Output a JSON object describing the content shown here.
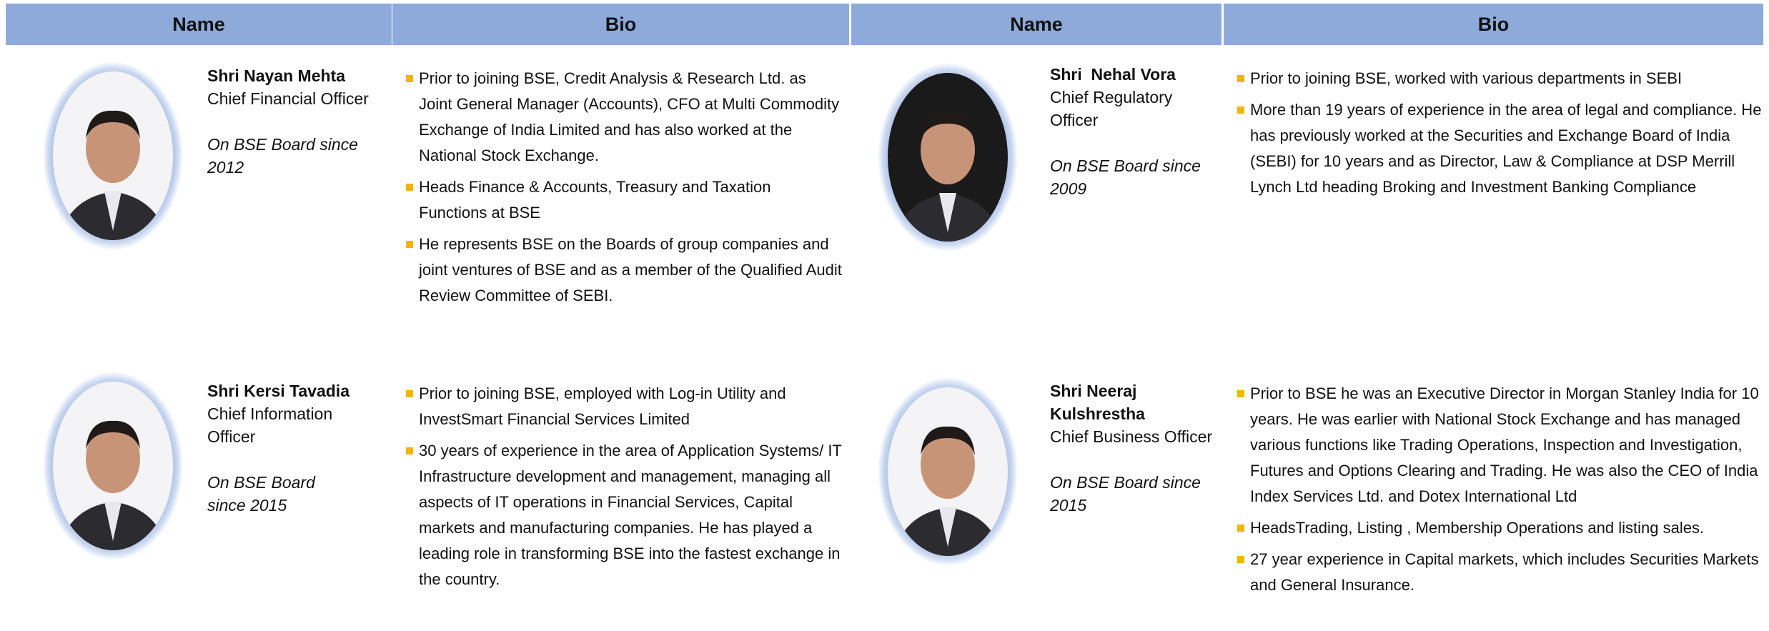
{
  "header": [
    "Name",
    "Bio",
    "Name",
    "Bio"
  ],
  "people": [
    {
      "name": "Shri Nayan Mehta",
      "title": "Chief Financial Officer",
      "board": "On BSE Board since 2012",
      "bio": [
        "Prior to joining BSE, Credit Analysis & Research Ltd. as Joint General Manager (Accounts), CFO at Multi Commodity Exchange of India Limited and has also worked at the National Stock Exchange.",
        "Heads Finance & Accounts, Treasury and Taxation Functions at BSE",
        "He represents BSE on the Boards of group companies and joint ventures of BSE and as a member of the Qualified Audit Review Committee of SEBI."
      ]
    },
    {
      "name": "Shri Kersi Tavadia",
      "title": "Chief Information Officer",
      "board": "On BSE Board since 2015",
      "bio": [
        "Prior to joining BSE, employed with Log-in Utility and InvestSmart Financial Services Limited",
        "30 years of experience in the area of Application Systems/ IT Infrastructure development and management, managing all aspects of IT operations in Financial Services, Capital markets and manufacturing companies. He has played a leading role in transforming BSE into the fastest exchange in the country."
      ]
    },
    {
      "name": "Shri  Nehal Vora",
      "title": "Chief Regulatory Officer",
      "board": "On BSE Board since 2009",
      "bio": [
        "Prior to joining BSE, worked with various departments in SEBI",
        "More than 19 years of experience in the area of legal and compliance. He has previously worked at the Securities and Exchange Board of India (SEBI) for 10 years and as Director, Law & Compliance at DSP Merrill Lynch Ltd heading Broking and Investment Banking Compliance"
      ]
    },
    {
      "name": "Shri Neeraj Kulshrestha",
      "title": "Chief Business Officer",
      "board": "On BSE Board since 2015",
      "bio": [
        "Prior to BSE he was an Executive Director in Morgan Stanley India for 10 years. He was earlier with National Stock Exchange and has managed various functions like Trading Operations, Inspection and Investigation, Futures and Options Clearing and Trading. He was also the CEO of India Index Services Ltd. and Dotex International Ltd",
        "HeadsTrading, Listing , Membership Operations and listing sales.",
        "27 year experience in Capital markets, which includes Securities Markets and General Insurance."
      ]
    }
  ]
}
